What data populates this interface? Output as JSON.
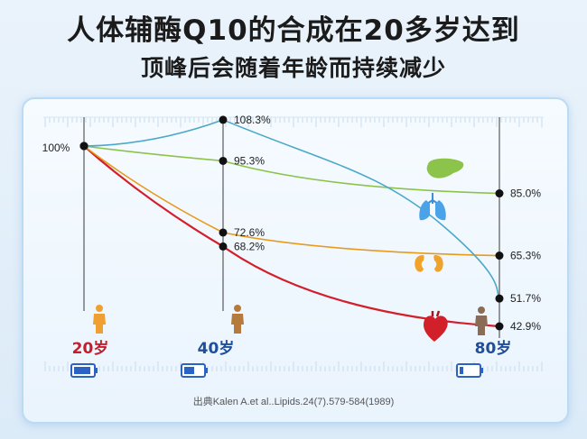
{
  "title_line1": "人体辅酶Q10的合成在20多岁达到",
  "title_line2": "顶峰后会随着年龄而持续减少",
  "source": "出典Kalen A.et al..Lipids.24(7).579-584(1989)",
  "chart_data": {
    "type": "line",
    "title": "",
    "xlabel": "",
    "ylabel": "",
    "categories": [
      "20岁",
      "40岁",
      "80岁"
    ],
    "start_label": "100%",
    "ylim": [
      40,
      110
    ],
    "grid": false,
    "series": [
      {
        "organ": "heart-icon",
        "color": "#d21f2c",
        "values": [
          100,
          68.2,
          42.9
        ],
        "labels": [
          "",
          "68.2%",
          "42.9%"
        ]
      },
      {
        "organ": "kidney-icon",
        "color": "#e89a1c",
        "values": [
          100,
          72.6,
          65.3
        ],
        "labels": [
          "",
          "72.6%",
          "65.3%"
        ]
      },
      {
        "organ": "liver-icon",
        "color": "#8cc34a",
        "values": [
          100,
          95.3,
          85.0
        ],
        "labels": [
          "",
          "95.3%",
          "85.0%"
        ]
      },
      {
        "organ": "lung-icon",
        "color": "#4aa8c8",
        "values": [
          100,
          108.3,
          51.7
        ],
        "labels": [
          "",
          "108.3%",
          "51.7%"
        ]
      }
    ],
    "category_colors": [
      "#c41e2a",
      "#1f4e9a",
      "#1f4e9a"
    ],
    "battery_levels": [
      0.9,
      0.55,
      0.2
    ]
  }
}
